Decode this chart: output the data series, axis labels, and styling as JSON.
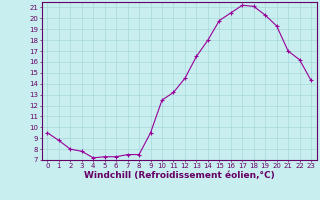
{
  "x": [
    0,
    1,
    2,
    3,
    4,
    5,
    6,
    7,
    8,
    9,
    10,
    11,
    12,
    13,
    14,
    15,
    16,
    17,
    18,
    19,
    20,
    21,
    22,
    23
  ],
  "y": [
    9.5,
    8.8,
    8.0,
    7.8,
    7.2,
    7.3,
    7.3,
    7.5,
    7.5,
    9.5,
    12.5,
    13.2,
    14.5,
    16.5,
    18.0,
    19.8,
    20.5,
    21.2,
    21.1,
    20.3,
    19.3,
    17.0,
    16.2,
    14.3
  ],
  "line_color": "#990099",
  "marker": "+",
  "marker_size": 3,
  "xlabel": "Windchill (Refroidissement éolien,°C)",
  "xlabel_fontsize": 6.5,
  "bg_color": "#c8eef0",
  "grid_color": "#a8d8d8",
  "axis_color": "#660066",
  "tick_color": "#660066",
  "ylim": [
    7,
    21.5
  ],
  "yticks": [
    7,
    8,
    9,
    10,
    11,
    12,
    13,
    14,
    15,
    16,
    17,
    18,
    19,
    20,
    21
  ],
  "xticks": [
    0,
    1,
    2,
    3,
    4,
    5,
    6,
    7,
    8,
    9,
    10,
    11,
    12,
    13,
    14,
    15,
    16,
    17,
    18,
    19,
    20,
    21,
    22,
    23
  ],
  "xlim": [
    -0.5,
    23.5
  ],
  "tick_fontsize": 5,
  "linewidth": 0.8,
  "markeredgewidth": 0.8
}
